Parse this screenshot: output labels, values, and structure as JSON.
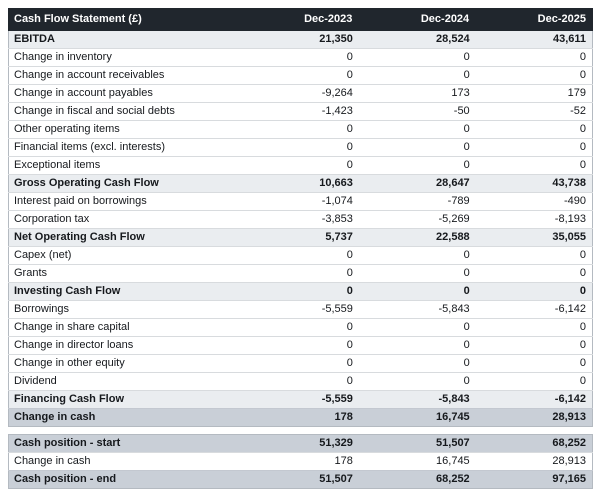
{
  "report_title": "Cash Flow Statement (£)",
  "columns": [
    "Dec-2023",
    "Dec-2024",
    "Dec-2025"
  ],
  "flows_rows": [
    {
      "label": "EBITDA",
      "values": [
        "21,350",
        "28,524",
        "43,611"
      ],
      "style": "subtotal"
    },
    {
      "label": "Change in inventory",
      "values": [
        "0",
        "0",
        "0"
      ],
      "style": "normal"
    },
    {
      "label": "Change in account receivables",
      "values": [
        "0",
        "0",
        "0"
      ],
      "style": "normal"
    },
    {
      "label": "Change in account payables",
      "values": [
        "-9,264",
        "173",
        "179"
      ],
      "style": "normal"
    },
    {
      "label": "Change in fiscal and social debts",
      "values": [
        "-1,423",
        "-50",
        "-52"
      ],
      "style": "normal"
    },
    {
      "label": "Other operating items",
      "values": [
        "0",
        "0",
        "0"
      ],
      "style": "normal"
    },
    {
      "label": "Financial items (excl. interests)",
      "values": [
        "0",
        "0",
        "0"
      ],
      "style": "normal"
    },
    {
      "label": "Exceptional items",
      "values": [
        "0",
        "0",
        "0"
      ],
      "style": "normal"
    },
    {
      "label": "Gross Operating Cash Flow",
      "values": [
        "10,663",
        "28,647",
        "43,738"
      ],
      "style": "subtotal"
    },
    {
      "label": "Interest paid on borrowings",
      "values": [
        "-1,074",
        "-789",
        "-490"
      ],
      "style": "normal"
    },
    {
      "label": "Corporation tax",
      "values": [
        "-3,853",
        "-5,269",
        "-8,193"
      ],
      "style": "normal"
    },
    {
      "label": "Net Operating Cash Flow",
      "values": [
        "5,737",
        "22,588",
        "35,055"
      ],
      "style": "subtotal"
    },
    {
      "label": "Capex (net)",
      "values": [
        "0",
        "0",
        "0"
      ],
      "style": "normal"
    },
    {
      "label": "Grants",
      "values": [
        "0",
        "0",
        "0"
      ],
      "style": "normal"
    },
    {
      "label": "Investing Cash Flow",
      "values": [
        "0",
        "0",
        "0"
      ],
      "style": "subtotal"
    },
    {
      "label": "Borrowings",
      "values": [
        "-5,559",
        "-5,843",
        "-6,142"
      ],
      "style": "normal"
    },
    {
      "label": "Change in share capital",
      "values": [
        "0",
        "0",
        "0"
      ],
      "style": "normal"
    },
    {
      "label": "Change in director loans",
      "values": [
        "0",
        "0",
        "0"
      ],
      "style": "normal"
    },
    {
      "label": "Change in other equity",
      "values": [
        "0",
        "0",
        "0"
      ],
      "style": "normal"
    },
    {
      "label": "Dividend",
      "values": [
        "0",
        "0",
        "0"
      ],
      "style": "normal"
    },
    {
      "label": "Financing Cash Flow",
      "values": [
        "-5,559",
        "-5,843",
        "-6,142"
      ],
      "style": "subtotal"
    },
    {
      "label": "Change in cash",
      "values": [
        "178",
        "16,745",
        "28,913"
      ],
      "style": "total"
    }
  ],
  "positions_rows": [
    {
      "label": "Cash position - start",
      "values": [
        "51,329",
        "51,507",
        "68,252"
      ],
      "style": "total"
    },
    {
      "label": "Change in cash",
      "values": [
        "178",
        "16,745",
        "28,913"
      ],
      "style": "normal"
    },
    {
      "label": "Cash position - end",
      "values": [
        "51,507",
        "68,252",
        "97,165"
      ],
      "style": "total"
    }
  ],
  "colors": {
    "header_bg": "#20262d",
    "header_text": "#ffffff",
    "subtotal_row_bg": "#eaedf0",
    "total_row_bg": "#c9cfd7",
    "row_border": "#d8dbde",
    "outer_border": "#b4bac1",
    "body_text": "#16191d"
  },
  "chart_data": {
    "type": "table",
    "title": "Cash Flow Statement (£)",
    "columns": [
      "Dec-2023",
      "Dec-2024",
      "Dec-2025"
    ],
    "rows": [
      {
        "label": "EBITDA",
        "values": [
          21350,
          28524,
          43611
        ]
      },
      {
        "label": "Change in inventory",
        "values": [
          0,
          0,
          0
        ]
      },
      {
        "label": "Change in account receivables",
        "values": [
          0,
          0,
          0
        ]
      },
      {
        "label": "Change in account payables",
        "values": [
          -9264,
          173,
          179
        ]
      },
      {
        "label": "Change in fiscal and social debts",
        "values": [
          -1423,
          -50,
          -52
        ]
      },
      {
        "label": "Other operating items",
        "values": [
          0,
          0,
          0
        ]
      },
      {
        "label": "Financial items (excl. interests)",
        "values": [
          0,
          0,
          0
        ]
      },
      {
        "label": "Exceptional items",
        "values": [
          0,
          0,
          0
        ]
      },
      {
        "label": "Gross Operating Cash Flow",
        "values": [
          10663,
          28647,
          43738
        ]
      },
      {
        "label": "Interest paid on borrowings",
        "values": [
          -1074,
          -789,
          -490
        ]
      },
      {
        "label": "Corporation tax",
        "values": [
          -3853,
          -5269,
          -8193
        ]
      },
      {
        "label": "Net Operating Cash Flow",
        "values": [
          5737,
          22588,
          35055
        ]
      },
      {
        "label": "Capex (net)",
        "values": [
          0,
          0,
          0
        ]
      },
      {
        "label": "Grants",
        "values": [
          0,
          0,
          0
        ]
      },
      {
        "label": "Investing Cash Flow",
        "values": [
          0,
          0,
          0
        ]
      },
      {
        "label": "Borrowings",
        "values": [
          -5559,
          -5843,
          -6142
        ]
      },
      {
        "label": "Change in share capital",
        "values": [
          0,
          0,
          0
        ]
      },
      {
        "label": "Change in director loans",
        "values": [
          0,
          0,
          0
        ]
      },
      {
        "label": "Change in other equity",
        "values": [
          0,
          0,
          0
        ]
      },
      {
        "label": "Dividend",
        "values": [
          0,
          0,
          0
        ]
      },
      {
        "label": "Financing Cash Flow",
        "values": [
          -5559,
          -5843,
          -6142
        ]
      },
      {
        "label": "Change in cash",
        "values": [
          178,
          16745,
          28913
        ]
      },
      {
        "label": "Cash position - start",
        "values": [
          51329,
          51507,
          68252
        ]
      },
      {
        "label": "Change in cash",
        "values": [
          178,
          16745,
          28913
        ]
      },
      {
        "label": "Cash position - end",
        "values": [
          51507,
          68252,
          97165
        ]
      }
    ]
  }
}
